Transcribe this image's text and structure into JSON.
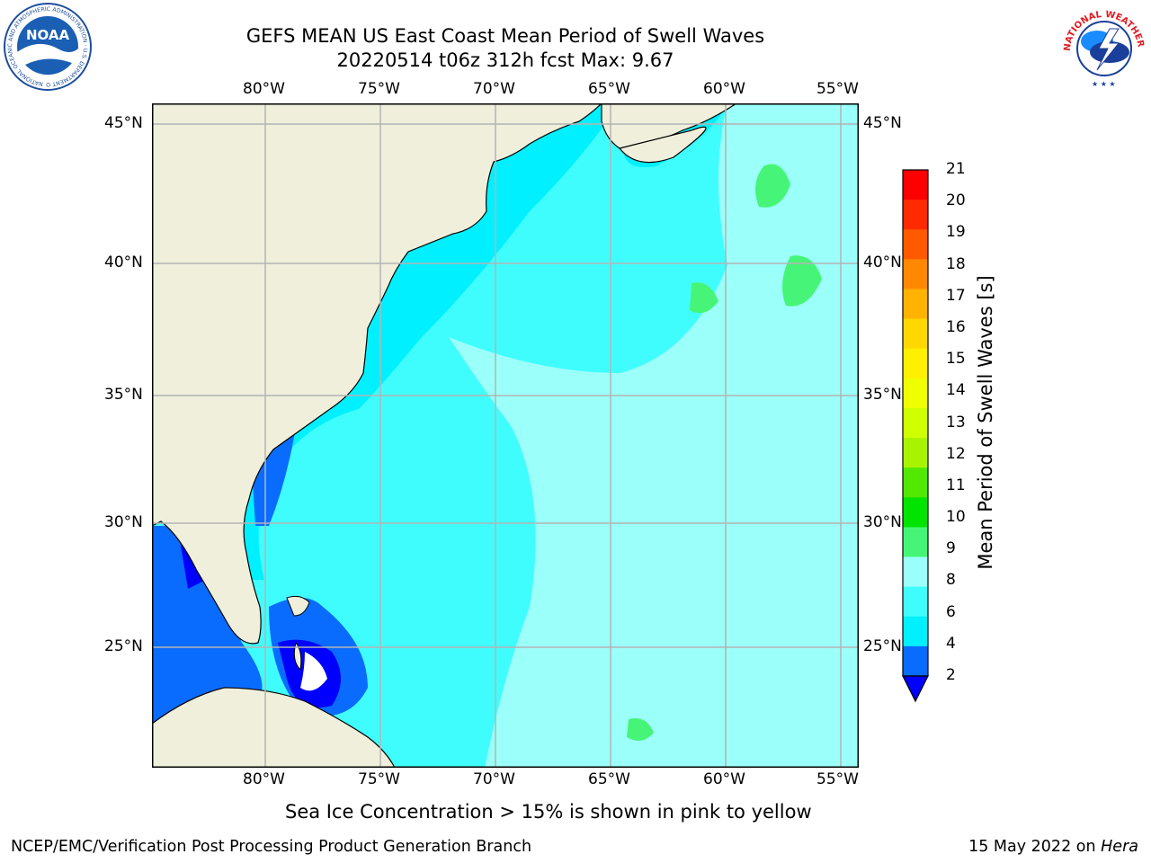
{
  "title": {
    "line1": "GEFS MEAN US East Coast Mean Period of Swell Waves",
    "line2": "20220514 t06z 312h fcst   Max: 9.67"
  },
  "logos": {
    "left": "noaa-logo",
    "left_text": "NOAA",
    "left_ring_text": "NATIONAL OCEANIC AND ATMOSPHERIC ADMINISTRATION · U.S. DEPARTMENT OF COMMERCE",
    "right": "nws-logo",
    "right_ring_text": "NATIONAL WEATHER SERVICE"
  },
  "map": {
    "lon_labels": [
      "80°W",
      "75°W",
      "70°W",
      "65°W",
      "60°W",
      "55°W"
    ],
    "lat_labels": [
      "45°N",
      "40°N",
      "35°N",
      "30°N",
      "25°N"
    ],
    "colors": {
      "land": "#efefdc",
      "grid": "#b4b4b4",
      "water_deep_blue": "#0000ff",
      "water_blue": "#0a6cff",
      "water_cyan": "#00f0ff",
      "water_light_cyan": "#40fdfd",
      "water_pale_cyan": "#9bfffa",
      "water_green": "#46f577"
    }
  },
  "colorbar": {
    "label": "Mean Period of Swell Waves [s]",
    "ticks": [
      "21",
      "20",
      "19",
      "18",
      "17",
      "16",
      "15",
      "14",
      "13",
      "12",
      "11",
      "10",
      "9",
      "8",
      "6",
      "4",
      "2"
    ],
    "colors": [
      "#ff0000",
      "#ff2a00",
      "#ff5a00",
      "#ff8800",
      "#ffb200",
      "#ffd800",
      "#fff000",
      "#f0ff00",
      "#d0ff00",
      "#a8f400",
      "#52e800",
      "#00e400",
      "#46f577",
      "#9bfffa",
      "#40fdfd",
      "#00f0ff",
      "#0a6cff"
    ],
    "under_color": "#0000ff"
  },
  "note": "Sea Ice Concentration > 15% is shown in pink to yellow",
  "footer": {
    "left": "NCEP/EMC/Verification Post Processing Product Generation Branch",
    "right_date": "15 May 2022 on ",
    "right_machine": "Hera"
  }
}
